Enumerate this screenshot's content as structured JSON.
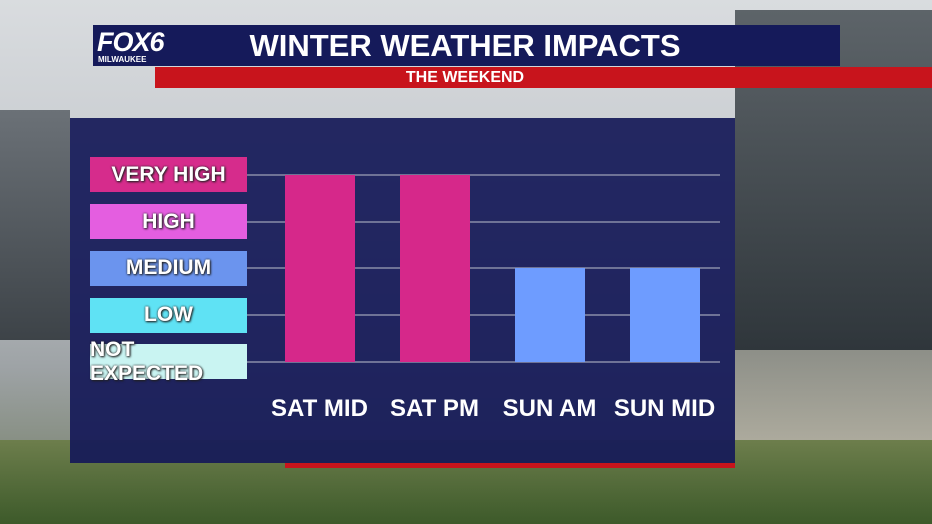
{
  "header": {
    "logo": "FOX6",
    "logo_sub": "MILWAUKEE",
    "title": "WINTER WEATHER IMPACTS",
    "subtitle": "THE WEEKEND"
  },
  "chart_data": {
    "type": "bar",
    "categories": [
      "SAT MID",
      "SAT PM",
      "SUN AM",
      "SUN MID"
    ],
    "values": [
      4,
      4,
      2,
      2
    ],
    "colors": [
      "#d6288a",
      "#d6288a",
      "#6e9cff",
      "#6e9cff"
    ],
    "ylim": [
      -0.6,
      4.4
    ],
    "yticks": [
      {
        "value": 0,
        "label": "NOT EXPECTED"
      },
      {
        "value": 1,
        "label": "LOW"
      },
      {
        "value": 2,
        "label": "MEDIUM"
      },
      {
        "value": 3,
        "label": "HIGH"
      },
      {
        "value": 4,
        "label": "VERY HIGH"
      }
    ],
    "ytick_colors": [
      "#c9f4f2",
      "#5fe2f4",
      "#6b94ee",
      "#e45ee0",
      "#d62c8c"
    ],
    "grid": true
  }
}
